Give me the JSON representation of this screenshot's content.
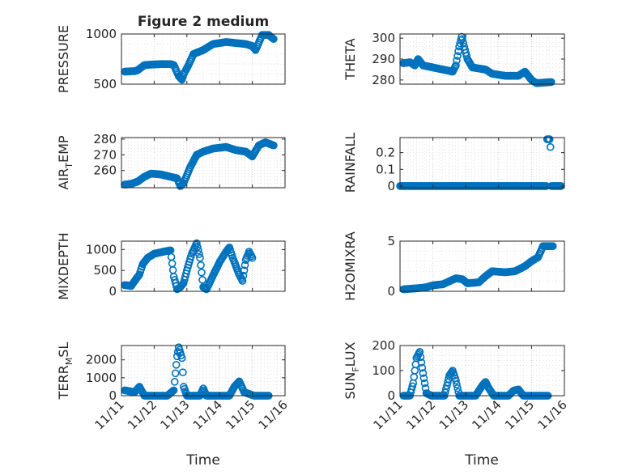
{
  "figure_title": "Figure 2 medium",
  "x_label": "Time",
  "x_ticks": [
    "11/11",
    "11/12",
    "11/13",
    "11/14",
    "11/15",
    "11/16"
  ],
  "marker_color": "#0072BD",
  "chart_data": [
    {
      "type": "scatter",
      "ylabel": "PRESSURE",
      "xlim": [
        0,
        5
      ],
      "ylim": [
        500,
        1000
      ],
      "y_ticks": [
        "500",
        "1000"
      ],
      "y_tick_values": [
        500,
        1000
      ],
      "grid": true,
      "anchors": [
        [
          0.1,
          625
        ],
        [
          0.4,
          630
        ],
        [
          0.5,
          640
        ],
        [
          0.7,
          690
        ],
        [
          0.9,
          695
        ],
        [
          1.2,
          700
        ],
        [
          1.5,
          700
        ],
        [
          1.6,
          690
        ],
        [
          1.75,
          580
        ],
        [
          1.85,
          545
        ],
        [
          1.9,
          600
        ],
        [
          2.05,
          690
        ],
        [
          2.2,
          800
        ],
        [
          2.5,
          840
        ],
        [
          2.8,
          900
        ],
        [
          3.2,
          920
        ],
        [
          3.5,
          910
        ],
        [
          3.8,
          900
        ],
        [
          4.0,
          880
        ],
        [
          4.1,
          840
        ],
        [
          4.3,
          990
        ],
        [
          4.5,
          990
        ],
        [
          4.65,
          950
        ]
      ]
    },
    {
      "type": "scatter",
      "ylabel": "THETA",
      "xlim": [
        0,
        5
      ],
      "ylim": [
        278,
        302
      ],
      "y_ticks": [
        "280",
        "290",
        "300"
      ],
      "y_tick_values": [
        280,
        290,
        300
      ],
      "grid": true,
      "anchors": [
        [
          0.1,
          288
        ],
        [
          0.3,
          288.5
        ],
        [
          0.45,
          287
        ],
        [
          0.55,
          290
        ],
        [
          0.7,
          287
        ],
        [
          1.0,
          286
        ],
        [
          1.3,
          285
        ],
        [
          1.6,
          284
        ],
        [
          1.7,
          287
        ],
        [
          1.8,
          296
        ],
        [
          1.88,
          301
        ],
        [
          1.95,
          296
        ],
        [
          2.05,
          290
        ],
        [
          2.2,
          286
        ],
        [
          2.6,
          285
        ],
        [
          2.8,
          283
        ],
        [
          3.2,
          282
        ],
        [
          3.6,
          282
        ],
        [
          3.8,
          284
        ],
        [
          4.0,
          280
        ],
        [
          4.15,
          278.5
        ],
        [
          4.6,
          279
        ]
      ]
    },
    {
      "type": "scatter",
      "ylabel": "AIR_TEMP",
      "xlim": [
        0,
        5
      ],
      "ylim": [
        249,
        281
      ],
      "y_ticks": [
        "260",
        "270",
        "280"
      ],
      "y_tick_values": [
        260,
        270,
        280
      ],
      "grid": true,
      "anchors": [
        [
          0.1,
          251
        ],
        [
          0.3,
          251.5
        ],
        [
          0.5,
          253
        ],
        [
          0.7,
          256
        ],
        [
          0.9,
          258
        ],
        [
          1.2,
          257.5
        ],
        [
          1.5,
          256
        ],
        [
          1.7,
          255
        ],
        [
          1.8,
          250
        ],
        [
          1.9,
          252
        ],
        [
          2.1,
          262
        ],
        [
          2.3,
          270
        ],
        [
          2.5,
          272
        ],
        [
          2.8,
          274
        ],
        [
          3.2,
          275
        ],
        [
          3.5,
          273
        ],
        [
          3.8,
          272
        ],
        [
          4.0,
          269
        ],
        [
          4.2,
          276
        ],
        [
          4.4,
          278
        ],
        [
          4.65,
          276
        ]
      ]
    },
    {
      "type": "scatter",
      "ylabel": "RAINFALL",
      "xlim": [
        0,
        5
      ],
      "ylim": [
        -0.01,
        0.29
      ],
      "y_ticks": [
        "0",
        "0.1",
        "0.2"
      ],
      "y_tick_values": [
        0,
        0.1,
        0.2
      ],
      "grid": true,
      "anchors": [
        [
          0.0,
          0
        ],
        [
          4.45,
          0
        ],
        [
          4.47,
          0.28
        ],
        [
          4.57,
          0.28
        ],
        [
          4.6,
          0
        ],
        [
          4.9,
          0
        ]
      ]
    },
    {
      "type": "scatter",
      "ylabel": "MIXDEPTH",
      "xlim": [
        0,
        5
      ],
      "ylim": [
        0,
        1200
      ],
      "y_ticks": [
        "0",
        "500",
        "1000"
      ],
      "y_tick_values": [
        0,
        500,
        1000
      ],
      "grid": true,
      "anchors": [
        [
          0.1,
          150
        ],
        [
          0.3,
          130
        ],
        [
          0.45,
          300
        ],
        [
          0.55,
          400
        ],
        [
          0.65,
          650
        ],
        [
          0.8,
          800
        ],
        [
          1.0,
          900
        ],
        [
          1.3,
          950
        ],
        [
          1.5,
          980
        ],
        [
          1.6,
          350
        ],
        [
          1.7,
          50
        ],
        [
          1.8,
          100
        ],
        [
          1.9,
          200
        ],
        [
          2.0,
          500
        ],
        [
          2.15,
          900
        ],
        [
          2.3,
          1150
        ],
        [
          2.4,
          800
        ],
        [
          2.5,
          100
        ],
        [
          2.6,
          50
        ],
        [
          2.75,
          300
        ],
        [
          3.0,
          700
        ],
        [
          3.2,
          950
        ],
        [
          3.3,
          1050
        ],
        [
          3.4,
          800
        ],
        [
          3.6,
          400
        ],
        [
          3.7,
          250
        ],
        [
          3.8,
          750
        ],
        [
          3.9,
          950
        ],
        [
          4.0,
          800
        ]
      ]
    },
    {
      "type": "scatter",
      "ylabel": "H2OMIXRA",
      "xlim": [
        0,
        5
      ],
      "ylim": [
        0,
        5
      ],
      "y_ticks": [
        "0",
        "5"
      ],
      "y_tick_values": [
        0,
        5
      ],
      "grid": true,
      "anchors": [
        [
          0.1,
          0.2
        ],
        [
          0.5,
          0.3
        ],
        [
          0.8,
          0.4
        ],
        [
          1.0,
          0.6
        ],
        [
          1.3,
          0.7
        ],
        [
          1.5,
          1.0
        ],
        [
          1.7,
          1.3
        ],
        [
          1.9,
          1.2
        ],
        [
          2.05,
          0.8
        ],
        [
          2.4,
          0.9
        ],
        [
          2.6,
          1.5
        ],
        [
          2.8,
          2.0
        ],
        [
          3.2,
          1.9
        ],
        [
          3.5,
          2.0
        ],
        [
          3.8,
          2.5
        ],
        [
          4.0,
          3.0
        ],
        [
          4.2,
          3.4
        ],
        [
          4.35,
          4.5
        ],
        [
          4.65,
          4.5
        ]
      ]
    },
    {
      "type": "scatter",
      "ylabel": "TERR_MSL",
      "xlim": [
        0,
        5
      ],
      "ylim": [
        0,
        2800
      ],
      "y_ticks": [
        "0",
        "1000",
        "2000"
      ],
      "y_tick_values": [
        0,
        1000,
        2000
      ],
      "grid": true,
      "anchors": [
        [
          0.1,
          300
        ],
        [
          0.4,
          200
        ],
        [
          0.55,
          500
        ],
        [
          0.7,
          0
        ],
        [
          1.4,
          0
        ],
        [
          1.6,
          300
        ],
        [
          1.7,
          2200
        ],
        [
          1.75,
          2700
        ],
        [
          1.85,
          2100
        ],
        [
          1.9,
          500
        ],
        [
          2.0,
          0
        ],
        [
          2.4,
          0
        ],
        [
          2.5,
          400
        ],
        [
          2.6,
          0
        ],
        [
          3.3,
          0
        ],
        [
          3.45,
          500
        ],
        [
          3.6,
          800
        ],
        [
          3.75,
          200
        ],
        [
          4.05,
          0
        ],
        [
          4.5,
          0
        ]
      ]
    },
    {
      "type": "scatter",
      "ylabel": "SUN_FLUX",
      "xlim": [
        0,
        5
      ],
      "ylim": [
        0,
        200
      ],
      "y_ticks": [
        "0",
        "100",
        "200"
      ],
      "y_tick_values": [
        0,
        100,
        200
      ],
      "grid": true,
      "anchors": [
        [
          0.1,
          0
        ],
        [
          0.3,
          0
        ],
        [
          0.4,
          50
        ],
        [
          0.5,
          150
        ],
        [
          0.6,
          175
        ],
        [
          0.7,
          90
        ],
        [
          0.8,
          10
        ],
        [
          0.95,
          0
        ],
        [
          1.35,
          0
        ],
        [
          1.5,
          80
        ],
        [
          1.6,
          100
        ],
        [
          1.7,
          60
        ],
        [
          1.8,
          0
        ],
        [
          2.3,
          0
        ],
        [
          2.5,
          40
        ],
        [
          2.6,
          55
        ],
        [
          2.7,
          30
        ],
        [
          2.85,
          0
        ],
        [
          3.3,
          0
        ],
        [
          3.45,
          20
        ],
        [
          3.6,
          25
        ],
        [
          3.75,
          0
        ],
        [
          4.0,
          0
        ],
        [
          4.5,
          0
        ]
      ]
    }
  ]
}
